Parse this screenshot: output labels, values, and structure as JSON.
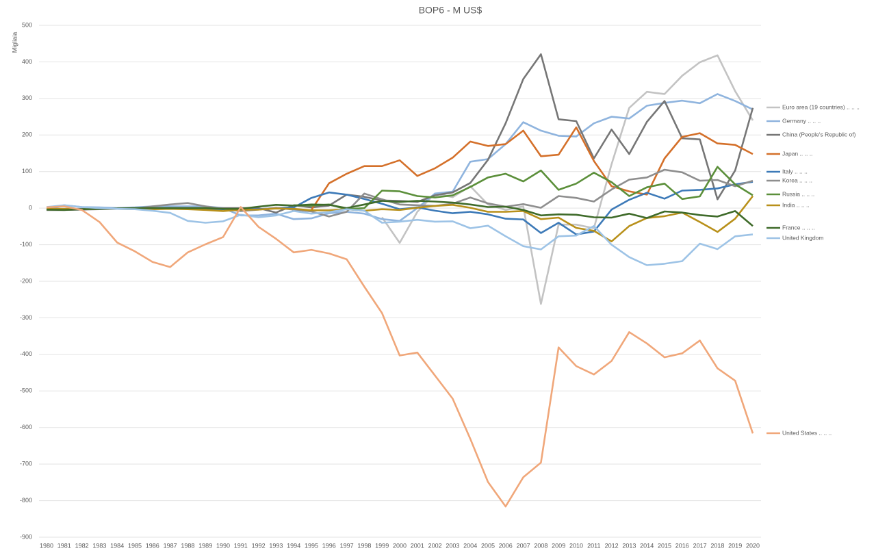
{
  "chart_data": {
    "type": "line",
    "title": "BOP6 - M US$",
    "y_label": "Migliaia",
    "categories": [
      "1980",
      "1981",
      "1982",
      "1983",
      "1984",
      "1985",
      "1986",
      "1987",
      "1988",
      "1989",
      "1990",
      "1991",
      "1992",
      "1993",
      "1994",
      "1995",
      "1996",
      "1997",
      "1998",
      "1999",
      "2000",
      "2001",
      "2002",
      "2003",
      "2004",
      "2005",
      "2006",
      "2007",
      "2008",
      "2009",
      "2010",
      "2011",
      "2012",
      "2013",
      "2014",
      "2015",
      "2016",
      "2017",
      "2018",
      "2019",
      "2020"
    ],
    "ylim": [
      -900,
      500
    ],
    "yticks": [
      -900,
      -800,
      -700,
      -600,
      -500,
      -400,
      -300,
      -200,
      -100,
      0,
      100,
      200,
      300,
      400,
      500
    ],
    "grid": true,
    "series": [
      {
        "name": "Euro area (19 countries) .. .. ..",
        "color": "#c3c3c3",
        "values": [
          null,
          null,
          null,
          null,
          null,
          null,
          null,
          null,
          null,
          null,
          null,
          null,
          null,
          null,
          null,
          null,
          null,
          null,
          null,
          -25,
          -95,
          -10,
          40,
          30,
          60,
          10,
          -5,
          5,
          -262,
          -45,
          -45,
          -55,
          120,
          274,
          318,
          312,
          362,
          399,
          418,
          320,
          240
        ]
      },
      {
        "name": "Germany .. .. ..",
        "color": "#8fb4de",
        "values": [
          -5,
          8,
          3,
          2,
          0,
          2,
          5,
          5,
          5,
          5,
          0,
          -20,
          -20,
          -15,
          -30,
          -28,
          -14,
          -10,
          -15,
          -30,
          -35,
          0,
          40,
          45,
          127,
          134,
          175,
          235,
          212,
          198,
          196,
          232,
          250,
          245,
          280,
          288,
          294,
          287,
          312,
          293,
          270
        ]
      },
      {
        "name": "China (People's Republic of)",
        "color": "#767676",
        "values": [
          -5,
          -5,
          -4,
          -3,
          -2,
          -1,
          -1,
          0,
          0,
          0,
          0,
          0,
          0,
          -12,
          8,
          2,
          7,
          37,
          31,
          21,
          20,
          17,
          35,
          43,
          69,
          132,
          232,
          353,
          421,
          243,
          238,
          136,
          215,
          148,
          236,
          293,
          191,
          188,
          24,
          103,
          274
        ]
      },
      {
        "name": "Japan .. .. ..",
        "color": "#d4702a",
        "values": [
          null,
          null,
          null,
          null,
          null,
          null,
          null,
          null,
          null,
          null,
          null,
          null,
          null,
          null,
          null,
          -5,
          68,
          94,
          115,
          115,
          131,
          88,
          109,
          138,
          182,
          170,
          175,
          212,
          142,
          146,
          221,
          129,
          60,
          46,
          37,
          136,
          195,
          205,
          177,
          173,
          148
        ]
      },
      {
        "name": "Italy .. .. ..",
        "color": "#3d7ab8",
        "values": [
          -2,
          -2,
          -2,
          -1,
          -1,
          -1,
          0,
          0,
          -1,
          -2,
          -3,
          -3,
          -3,
          0,
          2,
          28,
          43,
          37,
          25,
          12,
          -3,
          2,
          -7,
          -14,
          -10,
          -17,
          -29,
          -31,
          -68,
          -40,
          -72,
          -64,
          -4,
          23,
          42,
          26,
          48,
          50,
          54,
          65,
          72
        ]
      },
      {
        "name": "Korea .. .. ..",
        "color": "#8e8e8e",
        "values": [
          -5,
          -5,
          -3,
          -2,
          -1,
          -1,
          5,
          10,
          14,
          5,
          -2,
          -8,
          -4,
          1,
          -4,
          -9,
          -23,
          -10,
          40,
          24,
          10,
          8,
          6,
          12,
          29,
          13,
          4,
          11,
          1,
          33,
          28,
          18,
          51,
          78,
          84,
          105,
          98,
          75,
          77,
          60,
          75
        ]
      },
      {
        "name": "Russia .. .. ..",
        "color": "#5b8f3a",
        "values": [
          null,
          null,
          null,
          null,
          null,
          null,
          null,
          null,
          null,
          null,
          null,
          null,
          null,
          null,
          8,
          7,
          10,
          -3,
          0,
          48,
          46,
          33,
          29,
          35,
          58,
          84,
          94,
          73,
          103,
          50,
          67,
          97,
          71,
          33,
          57,
          67,
          25,
          32,
          113,
          65,
          35
        ]
      },
      {
        "name": "India .. .. ..",
        "color": "#b8901a",
        "values": [
          -2,
          -2,
          -3,
          -2,
          -2,
          -3,
          -3,
          -2,
          -3,
          -5,
          -8,
          -4,
          -4,
          -1,
          -2,
          -6,
          -6,
          -3,
          -7,
          -3,
          -5,
          1,
          6,
          9,
          1,
          -10,
          -10,
          -8,
          -30,
          -26,
          -54,
          -62,
          -91,
          -49,
          -27,
          -22,
          -12,
          -38,
          -65,
          -29,
          33
        ]
      },
      {
        "name": "France .. .. ..",
        "color": "#3f6b2a",
        "values": [
          -4,
          -5,
          -3,
          -2,
          -1,
          0,
          0,
          0,
          0,
          0,
          -2,
          -2,
          4,
          9,
          7,
          10,
          9,
          0,
          10,
          20,
          17,
          20,
          18,
          15,
          10,
          3,
          4,
          -5,
          -20,
          -17,
          -18,
          -25,
          -26,
          -15,
          -27,
          -9,
          -12,
          -19,
          -23,
          -8,
          -49
        ]
      },
      {
        "name": "United Kingdom",
        "color": "#9dc3e6",
        "values": [
          3,
          8,
          3,
          0,
          -2,
          -3,
          -7,
          -13,
          -35,
          -40,
          -36,
          -18,
          -25,
          -20,
          -8,
          -15,
          -11,
          -3,
          -7,
          -40,
          -37,
          -32,
          -37,
          -36,
          -55,
          -48,
          -77,
          -104,
          -113,
          -77,
          -75,
          -49,
          -100,
          -134,
          -156,
          -152,
          -145,
          -97,
          -112,
          -77,
          -72
        ]
      },
      {
        "name": "United States .. .. ..",
        "color": "#f0a77a",
        "values": [
          2,
          5,
          -5,
          -38,
          -94,
          -118,
          -147,
          -161,
          -121,
          -99,
          -79,
          3,
          -51,
          -84,
          -121,
          -114,
          -124,
          -140,
          -215,
          -287,
          -403,
          -395,
          -458,
          -521,
          -631,
          -749,
          -816,
          -736,
          -696,
          -381,
          -432,
          -455,
          -418,
          -339,
          -370,
          -408,
          -397,
          -362,
          -438,
          -472,
          -616
        ]
      }
    ]
  }
}
